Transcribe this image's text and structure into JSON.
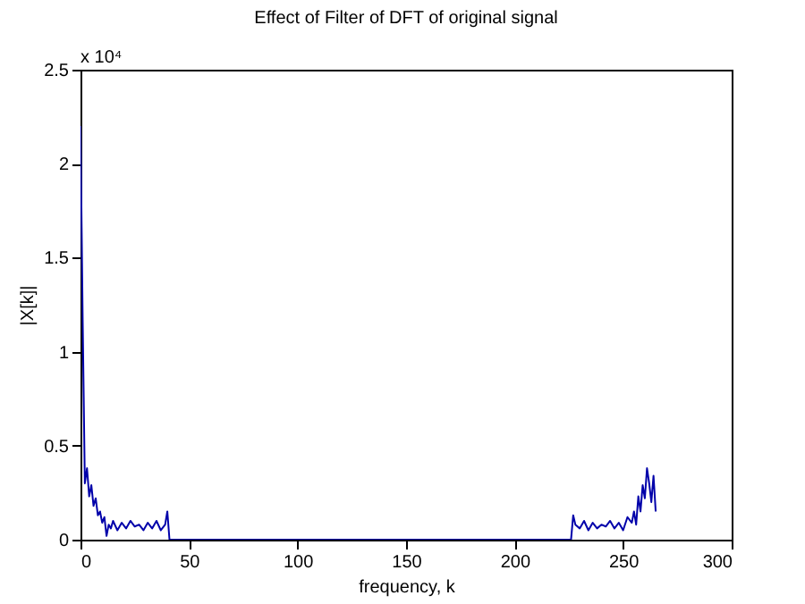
{
  "chart_data": {
    "type": "line",
    "title": "Effect of Filter of DFT of original signal",
    "xlabel": "frequency, k",
    "ylabel": "|X[k]|",
    "annotations": [
      "x 10⁴"
    ],
    "series": [
      {
        "color": "#0000aa",
        "x": [
          0,
          1,
          2,
          3,
          4,
          5,
          6,
          7,
          8,
          9,
          10,
          11,
          12,
          13,
          14,
          15,
          17,
          19,
          21,
          23,
          25,
          27,
          29,
          31,
          33,
          35,
          37,
          39,
          40,
          41,
          60,
          100,
          150,
          200,
          225,
          226,
          227,
          228,
          230,
          232,
          234,
          236,
          238,
          240,
          242,
          244,
          246,
          248,
          250,
          252,
          254,
          255,
          256,
          257,
          258,
          259,
          260,
          261,
          262,
          263,
          264,
          265
        ],
        "values": [
          2.2,
          1.17,
          0.3,
          0.38,
          0.23,
          0.29,
          0.18,
          0.22,
          0.13,
          0.15,
          0.09,
          0.12,
          0.02,
          0.08,
          0.06,
          0.1,
          0.05,
          0.09,
          0.06,
          0.1,
          0.07,
          0.08,
          0.05,
          0.09,
          0.06,
          0.1,
          0.05,
          0.08,
          0.15,
          0,
          0,
          0,
          0,
          0,
          0,
          0,
          0.13,
          0.08,
          0.06,
          0.1,
          0.05,
          0.09,
          0.06,
          0.08,
          0.07,
          0.1,
          0.06,
          0.09,
          0.05,
          0.12,
          0.09,
          0.15,
          0.08,
          0.23,
          0.15,
          0.29,
          0.22,
          0.38,
          0.3,
          0.2,
          0.34,
          0.15
        ]
      }
    ],
    "xlim": [
      0,
      300
    ],
    "xticks": [
      0,
      50,
      100,
      150,
      200,
      250,
      300
    ],
    "ylim": [
      0,
      2.5
    ],
    "yticks": [
      0,
      0.5,
      1,
      1.5,
      2,
      2.5
    ],
    "grid": false
  }
}
